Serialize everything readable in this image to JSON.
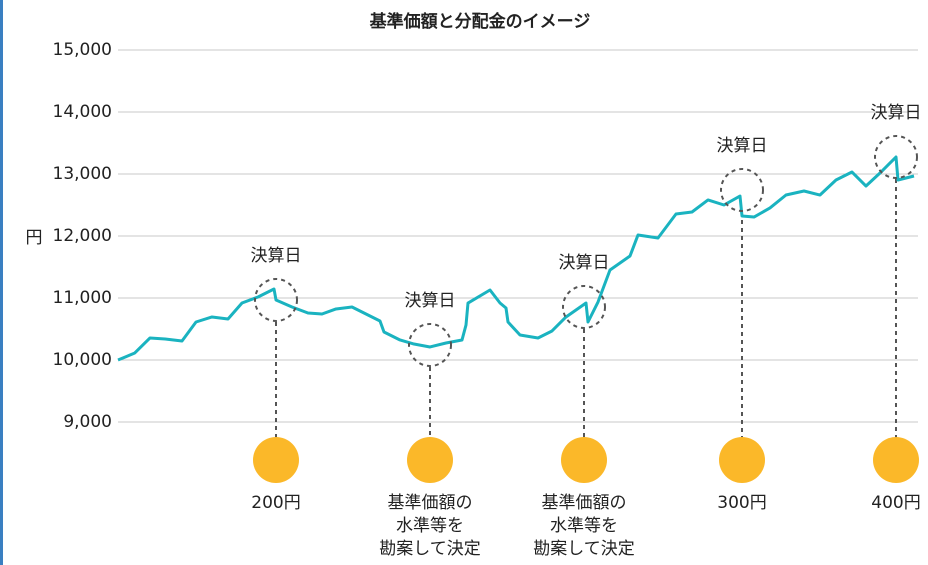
{
  "chart_data": {
    "type": "line",
    "title": "基準価額と分配金のイメージ",
    "y_label": "円",
    "x": [
      0,
      2.1,
      4,
      5.9,
      8,
      9.75,
      11.75,
      13.75,
      15.5,
      17.5,
      19.5,
      19.75,
      21.75,
      23.75,
      25.5,
      27.25,
      29.25,
      31,
      32.75,
      33.25,
      35.25,
      37,
      39,
      41,
      43,
      43.5,
      43.75,
      46.5,
      47.75,
      48.5,
      48.75,
      50.25,
      52.5,
      54.25,
      56,
      58.5,
      58.75,
      60,
      61.5,
      64,
      65,
      67.5,
      69.75,
      71.75,
      73.75,
      75.75,
      77.75,
      78,
      79.5,
      81.5,
      83.5,
      85.75,
      87.75,
      89.75,
      91.75,
      93.5,
      95.25,
      97.25,
      97.5,
      99.5
    ],
    "series": [
      {
        "color": "#1ab3c0",
        "values": [
          10000,
          10113,
          10355,
          10339,
          10306,
          10613,
          10694,
          10661,
          10919,
          11016,
          11145,
          10968,
          10855,
          10758,
          10742,
          10823,
          10855,
          10742,
          10629,
          10452,
          10323,
          10258,
          10210,
          10274,
          10323,
          10565,
          10919,
          11129,
          10919,
          10839,
          10613,
          10403,
          10355,
          10468,
          10694,
          10919,
          10613,
          10935,
          11452,
          11677,
          12016,
          11968,
          12355,
          12387,
          12581,
          12500,
          12645,
          12323,
          12306,
          12452,
          12661,
          12726,
          12661,
          12903,
          13032,
          12806,
          13016,
          13274,
          12903,
          12968
        ]
      }
    ],
    "xlim": [
      0,
      100
    ],
    "ylim": [
      9000,
      15000
    ],
    "yticks": [
      {
        "value": 9000,
        "label": "9,000"
      },
      {
        "value": 10000,
        "label": "10,000"
      },
      {
        "value": 11000,
        "label": "11,000"
      },
      {
        "value": 12000,
        "label": "12,000"
      },
      {
        "value": 13000,
        "label": "13,000"
      },
      {
        "value": 14000,
        "label": "14,000"
      },
      {
        "value": 15000,
        "label": "15,000"
      }
    ],
    "grid": true,
    "annotations": [
      {
        "x": 19.75,
        "y": 10968,
        "label": "決算日",
        "payout": [
          "200円"
        ]
      },
      {
        "x": 39,
        "y": 10242,
        "label": "決算日",
        "payout": [
          "基準価額の",
          "水準等を",
          "勘案して決定"
        ]
      },
      {
        "x": 58.25,
        "y": 10855,
        "label": "決算日",
        "payout": [
          "基準価額の",
          "水準等を",
          "勘案して決定"
        ]
      },
      {
        "x": 78,
        "y": 12742,
        "label": "決算日",
        "payout": [
          "300円"
        ]
      },
      {
        "x": 97.25,
        "y": 13274,
        "label": "決算日",
        "payout": [
          "400円"
        ]
      }
    ]
  }
}
